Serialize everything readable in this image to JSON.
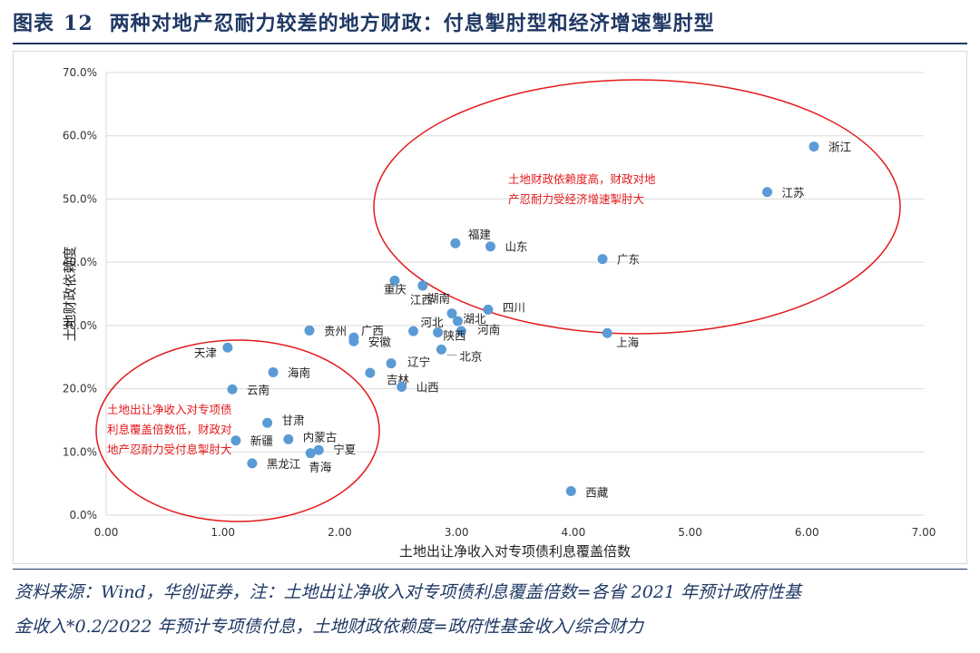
{
  "figure": {
    "label": "图表",
    "number": "12",
    "title": "两种对地产忍耐力较差的地方财政：付息掣肘型和经济增速掣肘型"
  },
  "source_note": {
    "line1": "资料来源：Wind，华创证券，注：土地出让净收入对专项债利息覆盖倍数=各省 2021 年预计政府性基",
    "line2": "金收入*0.2/2022 年预计专项债付息，土地财政依赖度=政府性基金收入/综合财力"
  },
  "colors": {
    "point": "#5b9bd5",
    "ellipse": "#e31a1c",
    "annotation": "#e31a1c",
    "title": "#1f3864",
    "grid": "#d9d9d9"
  },
  "chart_data": {
    "type": "scatter",
    "xlabel": "土地出让净收入对专项债利息覆盖倍数",
    "ylabel": "土地财政依赖度",
    "xlim": [
      0,
      7
    ],
    "ylim": [
      0,
      70
    ],
    "x_ticks": [
      "0.00",
      "1.00",
      "2.00",
      "3.00",
      "4.00",
      "5.00",
      "6.00",
      "7.00"
    ],
    "y_ticks": [
      "0.0%",
      "10.0%",
      "20.0%",
      "30.0%",
      "40.0%",
      "50.0%",
      "60.0%",
      "70.0%"
    ],
    "grid": "horizontal",
    "points": [
      {
        "name": "浙江",
        "x": 6.06,
        "y": 58.3
      },
      {
        "name": "江苏",
        "x": 5.66,
        "y": 51.1
      },
      {
        "name": "广东",
        "x": 4.25,
        "y": 40.5
      },
      {
        "name": "上海",
        "x": 4.29,
        "y": 28.8
      },
      {
        "name": "西藏",
        "x": 3.98,
        "y": 3.8
      },
      {
        "name": "福建",
        "x": 2.99,
        "y": 43.0
      },
      {
        "name": "山东",
        "x": 3.29,
        "y": 42.5
      },
      {
        "name": "四川",
        "x": 3.27,
        "y": 32.5
      },
      {
        "name": "湖北",
        "x": 3.01,
        "y": 30.7
      },
      {
        "name": "湖南",
        "x": 2.96,
        "y": 31.9
      },
      {
        "name": "河南",
        "x": 3.04,
        "y": 29.1
      },
      {
        "name": "陕西",
        "x": 2.84,
        "y": 28.9
      },
      {
        "name": "河北",
        "x": 2.63,
        "y": 29.1
      },
      {
        "name": "北京",
        "x": 2.87,
        "y": 26.2
      },
      {
        "name": "重庆",
        "x": 2.47,
        "y": 37.1
      },
      {
        "name": "江西",
        "x": 2.71,
        "y": 36.3
      },
      {
        "name": "贵州",
        "x": 1.74,
        "y": 29.2
      },
      {
        "name": "广西",
        "x": 2.12,
        "y": 28.1
      },
      {
        "name": "安徽",
        "x": 2.12,
        "y": 27.5
      },
      {
        "name": "辽宁",
        "x": 2.44,
        "y": 24.0
      },
      {
        "name": "吉林",
        "x": 2.26,
        "y": 22.5
      },
      {
        "name": "山西",
        "x": 2.53,
        "y": 20.3
      },
      {
        "name": "天津",
        "x": 1.04,
        "y": 26.5
      },
      {
        "name": "海南",
        "x": 1.43,
        "y": 22.6
      },
      {
        "name": "云南",
        "x": 1.08,
        "y": 19.9
      },
      {
        "name": "甘肃",
        "x": 1.38,
        "y": 14.6
      },
      {
        "name": "新疆",
        "x": 1.11,
        "y": 11.8
      },
      {
        "name": "内蒙古",
        "x": 1.56,
        "y": 12.0
      },
      {
        "name": "宁夏",
        "x": 1.82,
        "y": 10.3
      },
      {
        "name": "青海",
        "x": 1.75,
        "y": 9.8
      },
      {
        "name": "黑龙江",
        "x": 1.25,
        "y": 8.2
      }
    ],
    "annotations": [
      {
        "lines": [
          "土地财政依赖度高，财政对地",
          "产忍耐力受经济增速掣肘大"
        ]
      },
      {
        "lines": [
          "土地出让净收入对专项债",
          "利息覆盖倍数低，财政对",
          "地产忍耐力受付息掣肘大"
        ]
      }
    ]
  }
}
